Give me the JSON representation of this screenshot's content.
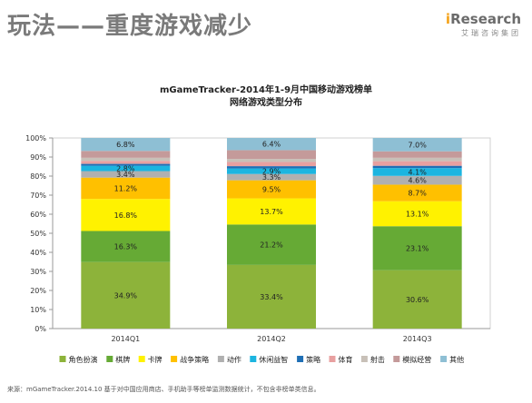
{
  "header": {
    "title": "玩法——重度游戏减少",
    "logo_text": "Research",
    "logo_prefix": "i",
    "logo_sub": "艾瑞咨询集团"
  },
  "footer": {
    "source": "来源：mGameTracker.2014.10 基于对中国应用商店、手机助手等榜单监测数据统计，不包含非榜单类信息。"
  },
  "chart_data": {
    "type": "bar",
    "stacked": true,
    "percent": true,
    "title": "mGameTracker-2014年1-9月中国移动游戏榜单",
    "subtitle": "网络游戏类型分布",
    "categories": [
      "2014Q1",
      "2014Q2",
      "2014Q3"
    ],
    "ylim": [
      0,
      100
    ],
    "yticks": [
      "0%",
      "10%",
      "20%",
      "30%",
      "40%",
      "50%",
      "60%",
      "70%",
      "80%",
      "90%",
      "100%"
    ],
    "legend_position": "bottom",
    "series": [
      {
        "name": "角色扮演",
        "color": "#8db33a",
        "values": [
          34.9,
          33.4,
          30.6
        ],
        "labels": [
          "34.9%",
          "33.4%",
          "30.6%"
        ]
      },
      {
        "name": "棋牌",
        "color": "#66aa35",
        "values": [
          16.3,
          21.2,
          23.1
        ],
        "labels": [
          "16.3%",
          "21.2%",
          "23.1%"
        ]
      },
      {
        "name": "卡牌",
        "color": "#fff200",
        "values": [
          16.8,
          13.7,
          13.1
        ],
        "labels": [
          "16.8%",
          "13.7%",
          "13.1%"
        ]
      },
      {
        "name": "战争策略",
        "color": "#ffc000",
        "values": [
          11.2,
          9.5,
          8.7
        ],
        "labels": [
          "11.2%",
          "9.5%",
          "8.7%"
        ]
      },
      {
        "name": "动作",
        "color": "#b0b0b0",
        "values": [
          3.4,
          3.3,
          4.6
        ],
        "labels": [
          "3.4%",
          "3.3%",
          "4.6%"
        ]
      },
      {
        "name": "休闲益智",
        "color": "#1cb5e0",
        "values": [
          2.8,
          2.9,
          4.1
        ],
        "labels": [
          "2.8%",
          "2.9%",
          "4.1%"
        ]
      },
      {
        "name": "策略",
        "color": "#1f6fb5",
        "values": [
          1.0,
          1.2,
          1.2
        ],
        "labels": [
          "",
          "",
          ""
        ]
      },
      {
        "name": "体育",
        "color": "#e8a0a0",
        "values": [
          1.6,
          2.2,
          2.4
        ],
        "labels": [
          "",
          "",
          ""
        ]
      },
      {
        "name": "射击",
        "color": "#c8c0b8",
        "values": [
          1.6,
          1.6,
          1.8
        ],
        "labels": [
          "",
          "",
          ""
        ]
      },
      {
        "name": "模拟经营",
        "color": "#c49a9a",
        "values": [
          3.6,
          4.6,
          3.4
        ],
        "labels": [
          "",
          "",
          ""
        ]
      },
      {
        "name": "其他",
        "color": "#8ebfd4",
        "values": [
          6.8,
          6.4,
          7.0
        ],
        "labels": [
          "6.8%",
          "6.4%",
          "7.0%"
        ]
      }
    ]
  }
}
